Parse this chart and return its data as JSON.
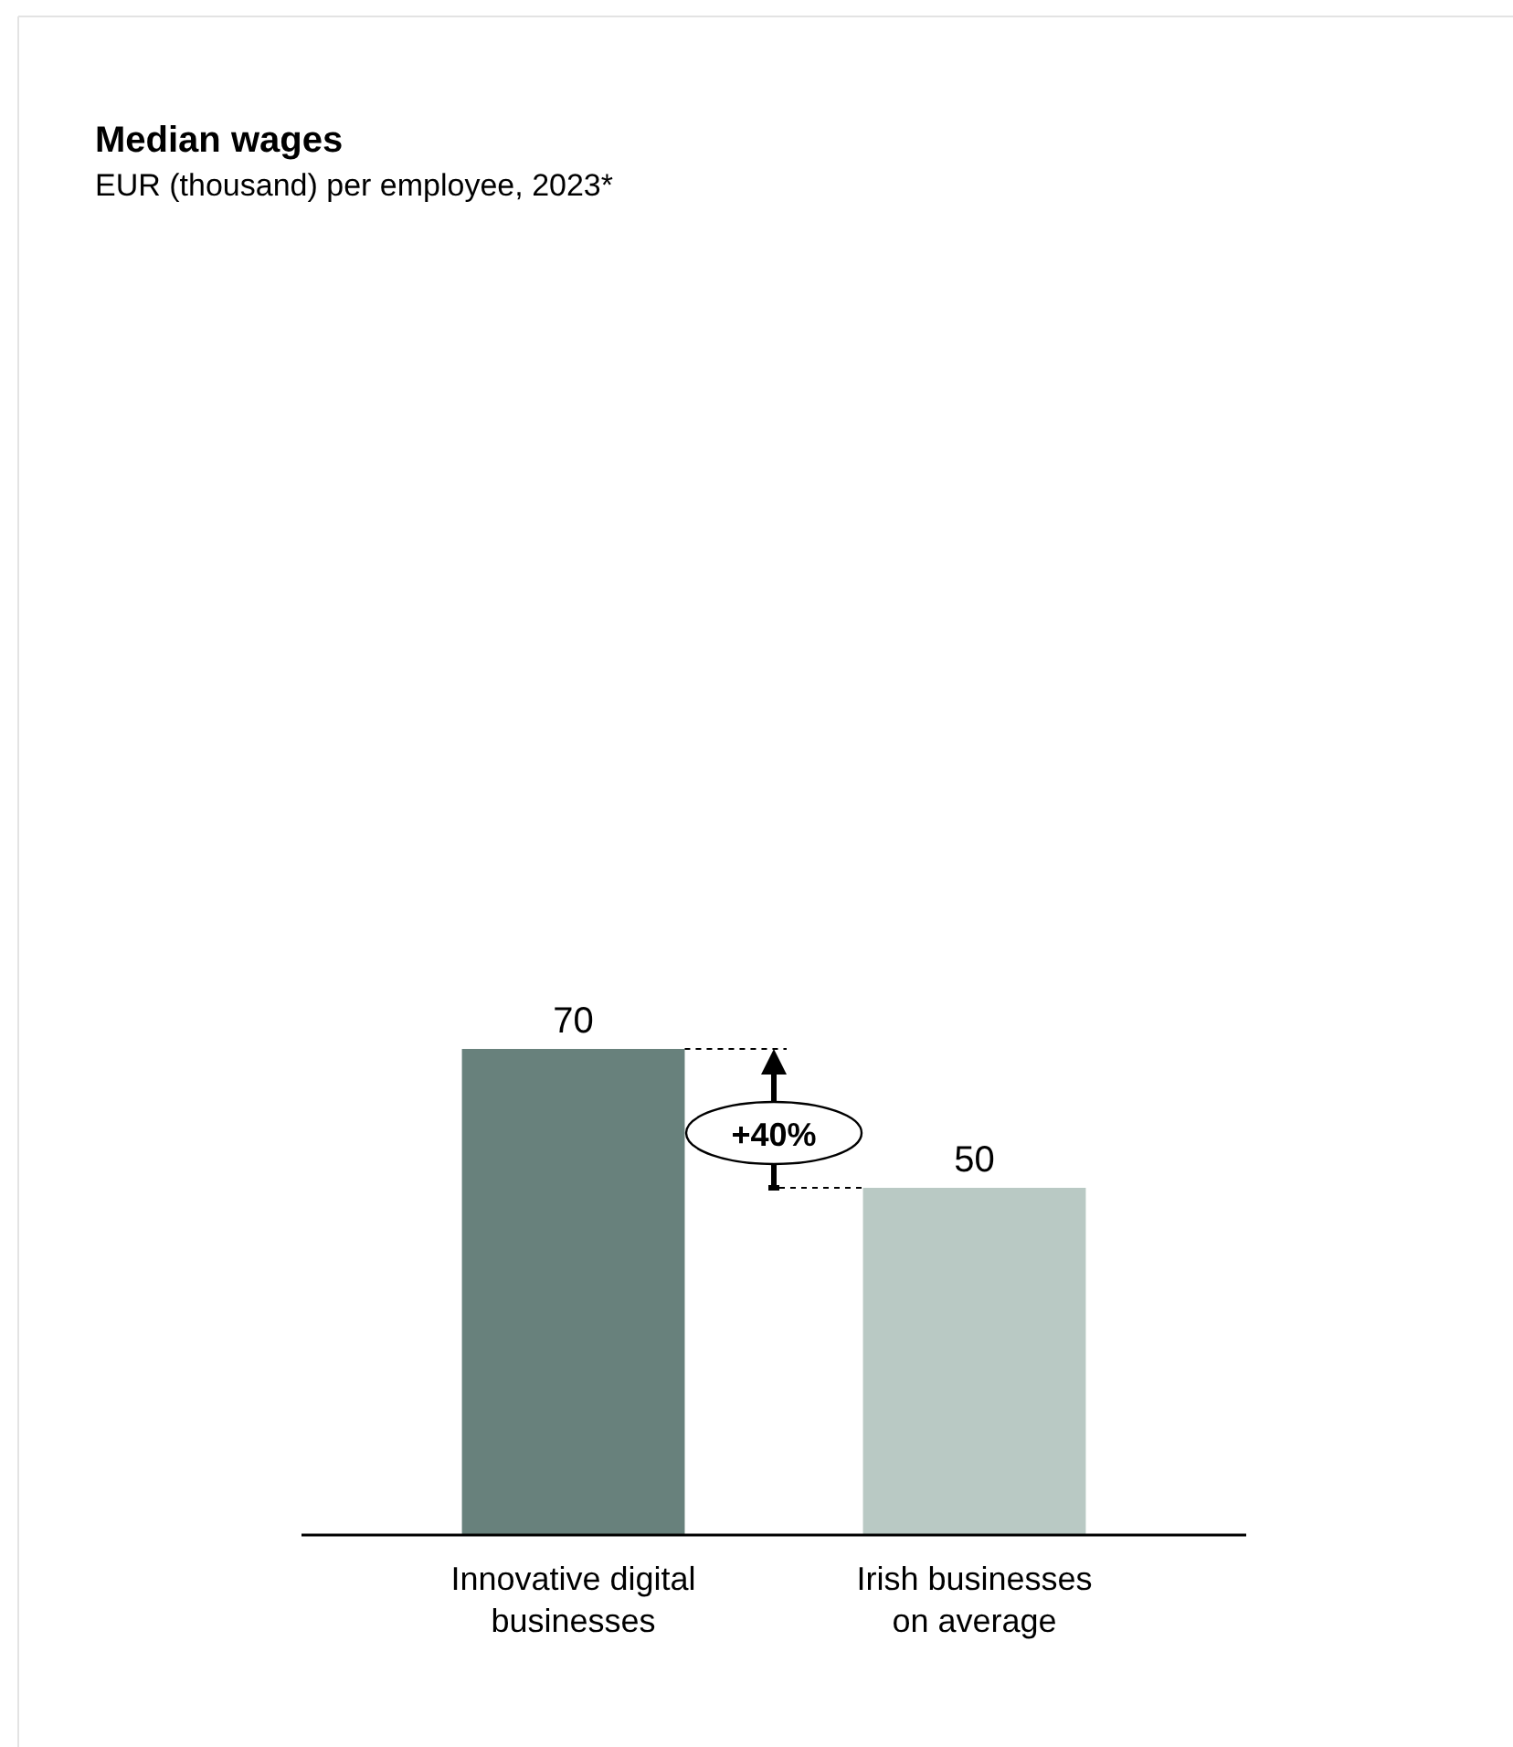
{
  "chart_data": {
    "type": "bar",
    "title": "Median wages",
    "subtitle": "EUR (thousand) per employee, 2023*",
    "categories": [
      "Innovative digital businesses",
      "Irish businesses on average"
    ],
    "values": [
      70,
      50
    ],
    "colors": [
      "#68817c",
      "#b9c9c4"
    ],
    "data_labels": true,
    "annotations": [
      "+40%"
    ]
  }
}
